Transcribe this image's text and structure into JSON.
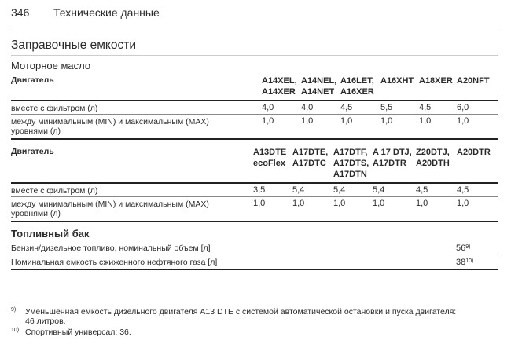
{
  "header": {
    "page_number": "346",
    "section": "Технические данные"
  },
  "title": "Заправочные емкости",
  "engine_oil": {
    "heading": "Моторное масло",
    "tables": [
      {
        "engine_label": "Двигатель",
        "engines": [
          [
            "A14XEL,",
            "A14XER"
          ],
          [
            "A14NEL,",
            "A14NET"
          ],
          [
            "A16LET,",
            "A16XER"
          ],
          [
            "A16XHT"
          ],
          [
            "A18XER"
          ],
          [
            "A20NFT"
          ]
        ],
        "rows": [
          {
            "label": "вместе с фильтром (л)",
            "values": [
              "4,0",
              "4,0",
              "4,5",
              "5,5",
              "4,5",
              "6,0"
            ]
          },
          {
            "label_lines": [
              "между минимальным (MIN) и максимальным (MAX)",
              "уровнями (л)"
            ],
            "values": [
              "1,0",
              "1,0",
              "1,0",
              "1,0",
              "1,0",
              "1,0"
            ]
          }
        ]
      },
      {
        "engine_label": "Двигатель",
        "engines": [
          [
            "A13DTE",
            "ecoFlex"
          ],
          [
            "A17DTE,",
            "A17DTC"
          ],
          [
            "A17DTF,",
            "A17DTS,",
            "A17DTN"
          ],
          [
            "A 17 DTJ,",
            "A17DTR"
          ],
          [
            "Z20DTJ,",
            "A20DTH"
          ],
          [
            "A20DTR"
          ]
        ],
        "rows": [
          {
            "label": "вместе с фильтром (л)",
            "values": [
              "3,5",
              "5,4",
              "5,4",
              "5,4",
              "4,5",
              "4,5"
            ]
          },
          {
            "label_lines": [
              "между минимальным (MIN) и максимальным (MAX)",
              "уровнями (л)"
            ],
            "values": [
              "1,0",
              "1,0",
              "1,0",
              "1,0",
              "1,0",
              "1,0"
            ]
          }
        ]
      }
    ]
  },
  "fuel_tank": {
    "heading": "Топливный бак",
    "rows": [
      {
        "label": "Бензин/дизельное топливо, номинальный объем [л]",
        "value": "56",
        "note": "9)"
      },
      {
        "label": "Номинальная емкость сжиженного нефтяного газа [л]",
        "value": "38",
        "note": "10)"
      }
    ]
  },
  "footnotes": [
    {
      "mark": "9)",
      "lines": [
        "Уменьшенная емкость дизельного двигателя A13 DTE с системой автоматической остановки и пуска двигателя:",
        "46 литров."
      ]
    },
    {
      "mark": "10)",
      "lines": [
        "Спортивный универсал: 36."
      ]
    }
  ]
}
